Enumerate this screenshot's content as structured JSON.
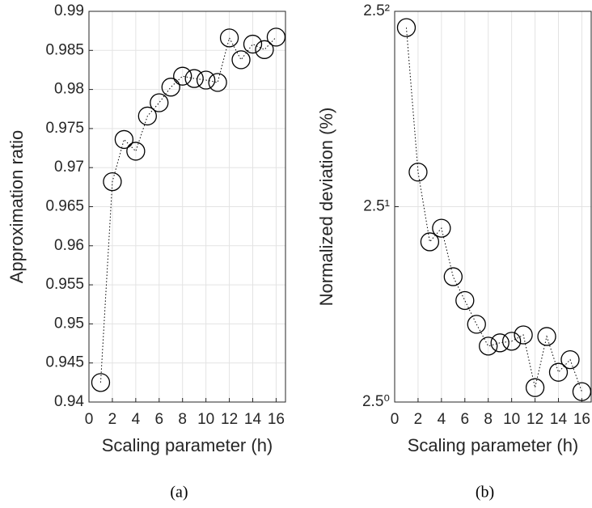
{
  "chart_data": [
    {
      "type": "line",
      "xlabel": "Scaling parameter (h)",
      "ylabel": "Approximation ratio",
      "caption": "(a)",
      "x": [
        1,
        2,
        3,
        4,
        5,
        6,
        7,
        8,
        9,
        10,
        11,
        12,
        13,
        14,
        15,
        16
      ],
      "values": [
        0.9425,
        0.9682,
        0.9736,
        0.9721,
        0.9766,
        0.9783,
        0.9803,
        0.9817,
        0.9814,
        0.9812,
        0.9809,
        0.9866,
        0.9838,
        0.9858,
        0.9851,
        0.9867
      ],
      "color": "#000000",
      "xlim": [
        0,
        16.8
      ],
      "xticks": [
        0,
        2,
        4,
        6,
        8,
        10,
        12,
        14,
        16
      ],
      "ylim": [
        0.94,
        0.99
      ],
      "yticks": [
        0.94,
        0.945,
        0.95,
        0.955,
        0.96,
        0.965,
        0.97,
        0.975,
        0.98,
        0.985,
        0.99
      ],
      "grid": true,
      "log_scale": false
    },
    {
      "type": "line",
      "xlabel": "Scaling parameter (h)",
      "ylabel": "Normalized deviation (%)",
      "caption": "(b)",
      "x": [
        1,
        2,
        3,
        4,
        5,
        6,
        7,
        8,
        9,
        10,
        11,
        12,
        13,
        14,
        15,
        16
      ],
      "values": [
        5.79,
        2.94,
        2.12,
        2.26,
        1.8,
        1.61,
        1.44,
        1.3,
        1.32,
        1.33,
        1.37,
        1.07,
        1.36,
        1.15,
        1.22,
        1.05
      ],
      "color": "#000000",
      "xlim": [
        0,
        16.8
      ],
      "xticks": [
        0,
        2,
        4,
        6,
        8,
        10,
        12,
        14,
        16
      ],
      "ylim": [
        1,
        6.25
      ],
      "yticks": [
        {
          "value": 1,
          "label": "2.5⁰"
        },
        {
          "value": 2.5,
          "label": "2.5¹"
        },
        {
          "value": 6.25,
          "label": "2.5²"
        }
      ],
      "grid": true,
      "log_scale": true
    }
  ]
}
